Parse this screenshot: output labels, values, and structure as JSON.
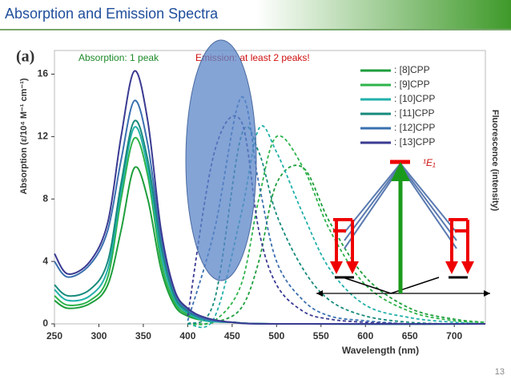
{
  "slide": {
    "title": "Absorption and Emission Spectra",
    "page": "13"
  },
  "chart_data": {
    "type": "line",
    "panel_label": "(a)",
    "annotations": [
      "Absorption: 1 peak",
      "Emission: at least 2 peaks!",
      "¹E₁"
    ],
    "xlabel": "Wavelength (nm)",
    "ylabel": "Absorption (ε/10⁴ M⁻¹ cm⁻¹)",
    "y2label": "Fluorescence (intensity)",
    "xlim": [
      250,
      735
    ],
    "ylim": [
      0,
      17
    ],
    "y2lim": [
      0,
      17
    ],
    "xticks": [
      250,
      300,
      350,
      400,
      450,
      500,
      550,
      600,
      650,
      700
    ],
    "yticks": [
      0,
      4,
      8,
      12,
      16
    ],
    "series": [
      {
        "name": ": [8]CPP",
        "color": "#1e9e3c",
        "x": [
          250,
          265,
          290,
          310,
          325,
          340,
          355,
          370,
          385,
          400,
          420,
          450,
          500,
          735
        ],
        "values": [
          1.5,
          1.0,
          1.3,
          2.5,
          6,
          10,
          8,
          3.5,
          1.2,
          0.5,
          0.2,
          0.1,
          0,
          0
        ],
        "emission": {
          "x": [
            400,
            430,
            460,
            480,
            500,
            530,
            560,
            600,
            650,
            700,
            735
          ],
          "values": [
            0,
            0.1,
            1,
            4,
            9,
            10,
            6.5,
            3,
            1,
            0.3,
            0.1
          ]
        }
      },
      {
        "name": ": [9]CPP",
        "color": "#2db34a",
        "x": [
          250,
          265,
          290,
          310,
          325,
          340,
          355,
          370,
          385,
          400,
          420,
          450,
          500,
          735
        ],
        "values": [
          1.8,
          1.2,
          1.5,
          3,
          8,
          11.9,
          9.5,
          4,
          1.4,
          0.6,
          0.2,
          0.1,
          0,
          0
        ],
        "emission": {
          "x": [
            400,
            430,
            460,
            480,
            500,
            530,
            560,
            600,
            650,
            700,
            735
          ],
          "values": [
            0,
            0.2,
            2.5,
            8,
            12,
            10,
            6,
            2.5,
            0.8,
            0.2,
            0.1
          ]
        }
      },
      {
        "name": ": [10]CPP",
        "color": "#22b0aa",
        "x": [
          250,
          265,
          290,
          310,
          325,
          340,
          355,
          370,
          385,
          400,
          420,
          450,
          500,
          735
        ],
        "values": [
          2.2,
          1.5,
          1.8,
          3.5,
          8.5,
          12.6,
          10,
          4.5,
          1.6,
          0.7,
          0.2,
          0.1,
          0,
          0
        ],
        "emission": {
          "x": [
            400,
            430,
            460,
            480,
            500,
            530,
            560,
            600,
            650,
            700,
            735
          ],
          "values": [
            0,
            0.4,
            7,
            12.5,
            11,
            7,
            3.5,
            1.2,
            0.4,
            0.1,
            0
          ]
        }
      },
      {
        "name": ": [11]CPP",
        "color": "#178a7c",
        "x": [
          250,
          265,
          290,
          310,
          325,
          340,
          355,
          370,
          385,
          400,
          420,
          450,
          500,
          735
        ],
        "values": [
          2.5,
          1.8,
          2.2,
          4,
          9,
          13,
          10.5,
          5,
          1.8,
          0.8,
          0.3,
          0.1,
          0,
          0
        ],
        "emission": {
          "x": [
            400,
            430,
            460,
            480,
            500,
            530,
            560,
            600,
            650,
            700,
            735
          ],
          "values": [
            0,
            1.5,
            12,
            11,
            7,
            3.5,
            1.5,
            0.5,
            0.1,
            0,
            0
          ]
        }
      },
      {
        "name": ": [12]CPP",
        "color": "#3a70b0",
        "x": [
          250,
          265,
          290,
          310,
          325,
          340,
          355,
          370,
          385,
          400,
          420,
          450,
          500,
          735
        ],
        "values": [
          4,
          3,
          3.8,
          6,
          10.5,
          14.3,
          11.5,
          5.5,
          2,
          0.9,
          0.3,
          0.1,
          0,
          0
        ],
        "emission": {
          "x": [
            400,
            430,
            460,
            480,
            500,
            530,
            560,
            600,
            650,
            700,
            735
          ],
          "values": [
            0.2,
            6,
            14.5,
            9,
            4,
            1.5,
            0.5,
            0.2,
            0,
            0,
            0
          ]
        }
      },
      {
        "name": ": [13]CPP",
        "color": "#3a3a92",
        "x": [
          250,
          265,
          290,
          310,
          325,
          340,
          355,
          370,
          385,
          400,
          420,
          450,
          500,
          735
        ],
        "values": [
          4.5,
          3.2,
          4,
          6.5,
          12,
          16.2,
          13,
          6,
          2.2,
          1,
          0.4,
          0.1,
          0,
          0
        ],
        "emission": {
          "x": [
            400,
            430,
            460,
            480,
            500,
            530,
            560,
            600,
            650,
            700,
            735
          ],
          "values": [
            0.5,
            11,
            13,
            6,
            2.5,
            0.8,
            0.3,
            0.1,
            0,
            0,
            0
          ]
        }
      }
    ]
  }
}
